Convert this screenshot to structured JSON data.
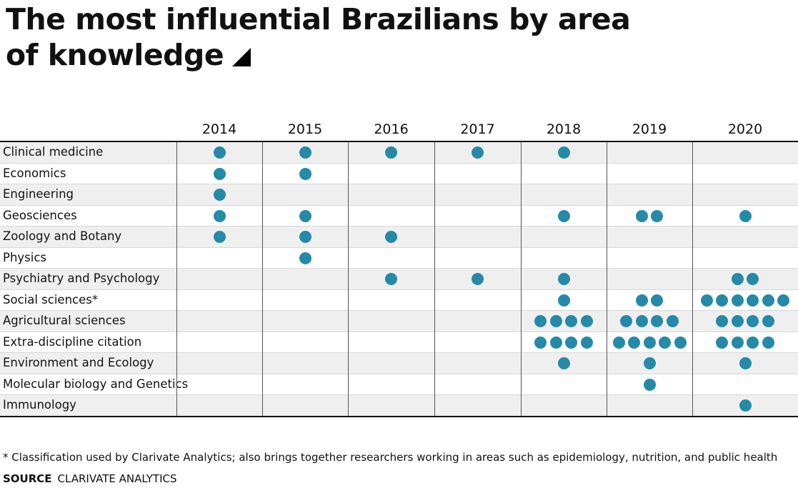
{
  "title": "The most influential Brazilians by area of knowledge",
  "chart_data": {
    "type": "dot-matrix",
    "title": "The most influential Brazilians by area of knowledge",
    "colors": {
      "dot": "#2589a8"
    },
    "years": [
      "2014",
      "2015",
      "2016",
      "2017",
      "2018",
      "2019",
      "2020"
    ],
    "rows": [
      {
        "label": "Clinical medicine",
        "counts": [
          1,
          1,
          1,
          1,
          1,
          0,
          0
        ]
      },
      {
        "label": "Economics",
        "counts": [
          1,
          1,
          0,
          0,
          0,
          0,
          0
        ]
      },
      {
        "label": "Engineering",
        "counts": [
          1,
          0,
          0,
          0,
          0,
          0,
          0
        ]
      },
      {
        "label": "Geosciences",
        "counts": [
          1,
          1,
          0,
          0,
          1,
          2,
          1
        ]
      },
      {
        "label": "Zoology and Botany",
        "counts": [
          1,
          1,
          1,
          0,
          0,
          0,
          0
        ]
      },
      {
        "label": "Physics",
        "counts": [
          0,
          1,
          0,
          0,
          0,
          0,
          0
        ]
      },
      {
        "label": "Psychiatry and Psychology",
        "counts": [
          0,
          0,
          1,
          1,
          1,
          0,
          2
        ]
      },
      {
        "label": "Social sciences*",
        "counts": [
          0,
          0,
          0,
          0,
          1,
          2,
          6
        ]
      },
      {
        "label": "Agricultural sciences",
        "counts": [
          0,
          0,
          0,
          0,
          4,
          4,
          4
        ]
      },
      {
        "label": "Extra-discipline citation",
        "counts": [
          0,
          0,
          0,
          0,
          4,
          5,
          4
        ]
      },
      {
        "label": "Environment and Ecology",
        "counts": [
          0,
          0,
          0,
          0,
          1,
          1,
          1
        ]
      },
      {
        "label": "Molecular biology and Genetics",
        "counts": [
          0,
          0,
          0,
          0,
          0,
          1,
          0
        ]
      },
      {
        "label": "Immunology",
        "counts": [
          0,
          0,
          0,
          0,
          0,
          0,
          1
        ]
      }
    ]
  },
  "note": "* Classification used by Clarivate Analytics; also brings together researchers working in areas such as epidemiology, nutrition, and public health",
  "source_label": "SOURCE",
  "source": "CLARIVATE ANALYTICS"
}
